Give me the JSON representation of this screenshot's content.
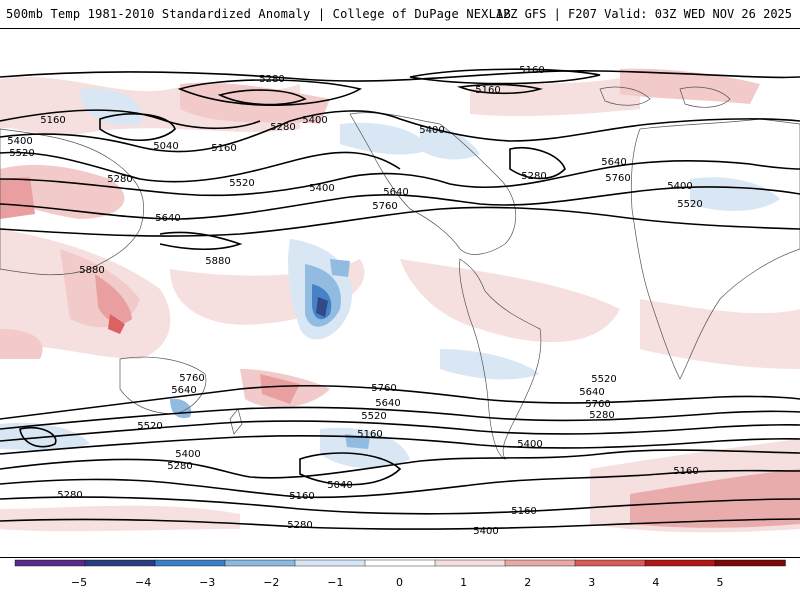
{
  "header": {
    "title": "500mb Temp 1981-2010 Standardized Anomaly | College of DuPage NEXLAB",
    "run_info": "12Z GFS | F207 Valid: 03Z WED NOV 26 2025"
  },
  "contour_labels": [
    "5280",
    "5160",
    "5160",
    "5400",
    "5400",
    "5160",
    "5400",
    "5520",
    "5040",
    "5160",
    "5280",
    "5280",
    "5520",
    "5400",
    "5640",
    "5640",
    "5760",
    "5280",
    "5640",
    "5760",
    "5400",
    "5520",
    "5880",
    "5880",
    "5760",
    "5640",
    "5520",
    "5400",
    "5280",
    "5760",
    "5640",
    "5520",
    "5400",
    "5160",
    "5040",
    "5160",
    "5280",
    "5160",
    "5280",
    "5400",
    "5520",
    "5640",
    "5760",
    "5280",
    "5160"
  ],
  "colorbar": {
    "ticks": [
      "−5",
      "−4",
      "−3",
      "−2",
      "−1",
      "0",
      "1",
      "2",
      "3",
      "4",
      "5"
    ],
    "colors": [
      "#5a2a8a",
      "#2a3f7f",
      "#3c7dc4",
      "#8db8e0",
      "#d7e6f4",
      "#ffffff",
      "#f6dede",
      "#e8a8a8",
      "#d95a5a",
      "#b01818",
      "#7a0a0a"
    ]
  }
}
